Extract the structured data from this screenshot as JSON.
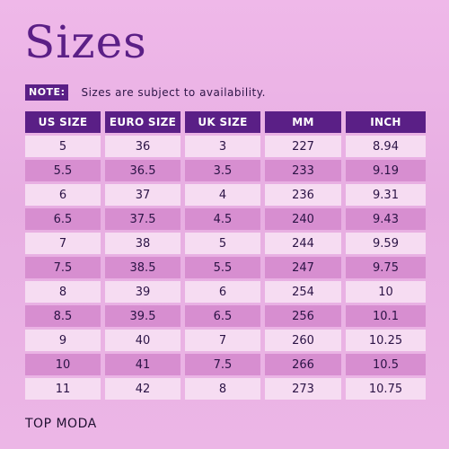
{
  "title": "Sizes",
  "note": {
    "label": "NOTE:",
    "text": "Sizes are subject to availability."
  },
  "table": {
    "headers": [
      "US SIZE",
      "EURO SIZE",
      "UK SIZE",
      "MM",
      "INCH"
    ],
    "rows": [
      [
        "5",
        "36",
        "3",
        "227",
        "8.94"
      ],
      [
        "5.5",
        "36.5",
        "3.5",
        "233",
        "9.19"
      ],
      [
        "6",
        "37",
        "4",
        "236",
        "9.31"
      ],
      [
        "6.5",
        "37.5",
        "4.5",
        "240",
        "9.43"
      ],
      [
        "7",
        "38",
        "5",
        "244",
        "9.59"
      ],
      [
        "7.5",
        "38.5",
        "5.5",
        "247",
        "9.75"
      ],
      [
        "8",
        "39",
        "6",
        "254",
        "10"
      ],
      [
        "8.5",
        "39.5",
        "6.5",
        "256",
        "10.1"
      ],
      [
        "9",
        "40",
        "7",
        "260",
        "10.25"
      ],
      [
        "10",
        "41",
        "7.5",
        "266",
        "10.5"
      ],
      [
        "11",
        "42",
        "8",
        "273",
        "10.75"
      ]
    ]
  },
  "brand": "TOP MODA",
  "colors": {
    "accent": "#5a1f86",
    "row_light": "#f6dcf2",
    "row_dark": "#d78ed0",
    "background": "#ecb4e6"
  }
}
